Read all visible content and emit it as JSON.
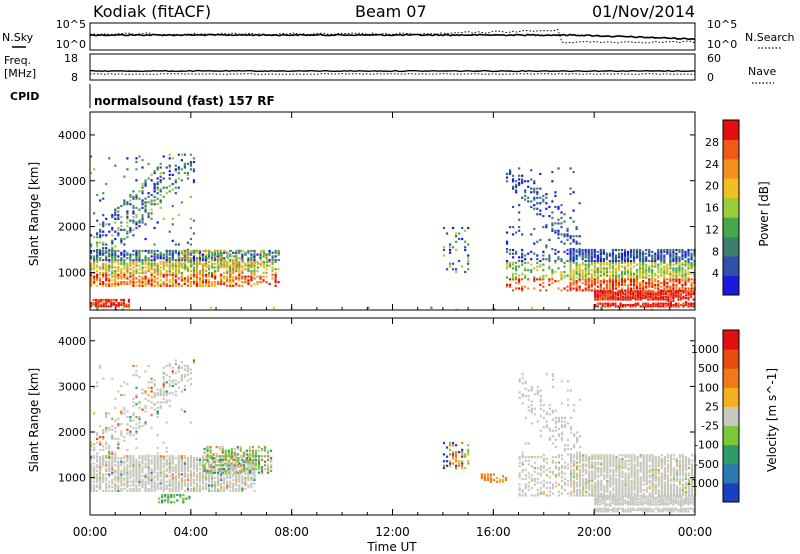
{
  "header": {
    "station": "Kodiak (fitACF)",
    "beam": "Beam 07",
    "date": "01/Nov/2014"
  },
  "top_panels": {
    "nsky_label": "N.Sky",
    "nsky_ticks": [
      "10^5",
      "10^0"
    ],
    "nsearch_label": "N.Search",
    "nsearch_ticks": [
      "10^5",
      "10^0"
    ],
    "freq_label_1": "Freq.",
    "freq_label_2": "[MHz]",
    "freq_ticks": [
      "18",
      "8"
    ],
    "nave_label": "Nave",
    "nave_ticks": [
      "60",
      "0"
    ],
    "cpid_label": "CPID",
    "cpid_text": "normalsound (fast) 157 RF"
  },
  "chart_data": [
    {
      "type": "heatmap",
      "title": "",
      "ylabel": "Slant Range [km]",
      "xlabel": "",
      "ylim": [
        180,
        4500
      ],
      "yticks": [
        "4000",
        "3000",
        "2000",
        "1000"
      ],
      "colorbar": {
        "label": "Power [dB]",
        "ticks": [
          "28",
          "24",
          "20",
          "16",
          "12",
          "8",
          "4"
        ],
        "colors": [
          "#1a1adc",
          "#2f4fa8",
          "#3f7e6a",
          "#45a84a",
          "#9ccc3a",
          "#f0c020",
          "#f49020",
          "#ef5a18",
          "#e01010"
        ]
      }
    },
    {
      "type": "heatmap",
      "title": "",
      "ylabel": "Slant Range [km]",
      "xlabel": "Time UT",
      "ylim": [
        180,
        4500
      ],
      "yticks": [
        "4000",
        "3000",
        "2000",
        "1000"
      ],
      "xticks": [
        "00:00",
        "04:00",
        "08:00",
        "12:00",
        "16:00",
        "20:00",
        "00:00"
      ],
      "colorbar": {
        "label": "Velocity [m s^-1]",
        "ticks": [
          "1000",
          "500",
          "100",
          "25",
          "-25",
          "-100",
          "-500",
          "-1000"
        ],
        "colors": [
          "#1a3fbf",
          "#2a7ab0",
          "#2f9a6a",
          "#7cc83a",
          "#c8c8c0",
          "#f0b020",
          "#f07a18",
          "#e84a10",
          "#e01010"
        ]
      }
    }
  ]
}
